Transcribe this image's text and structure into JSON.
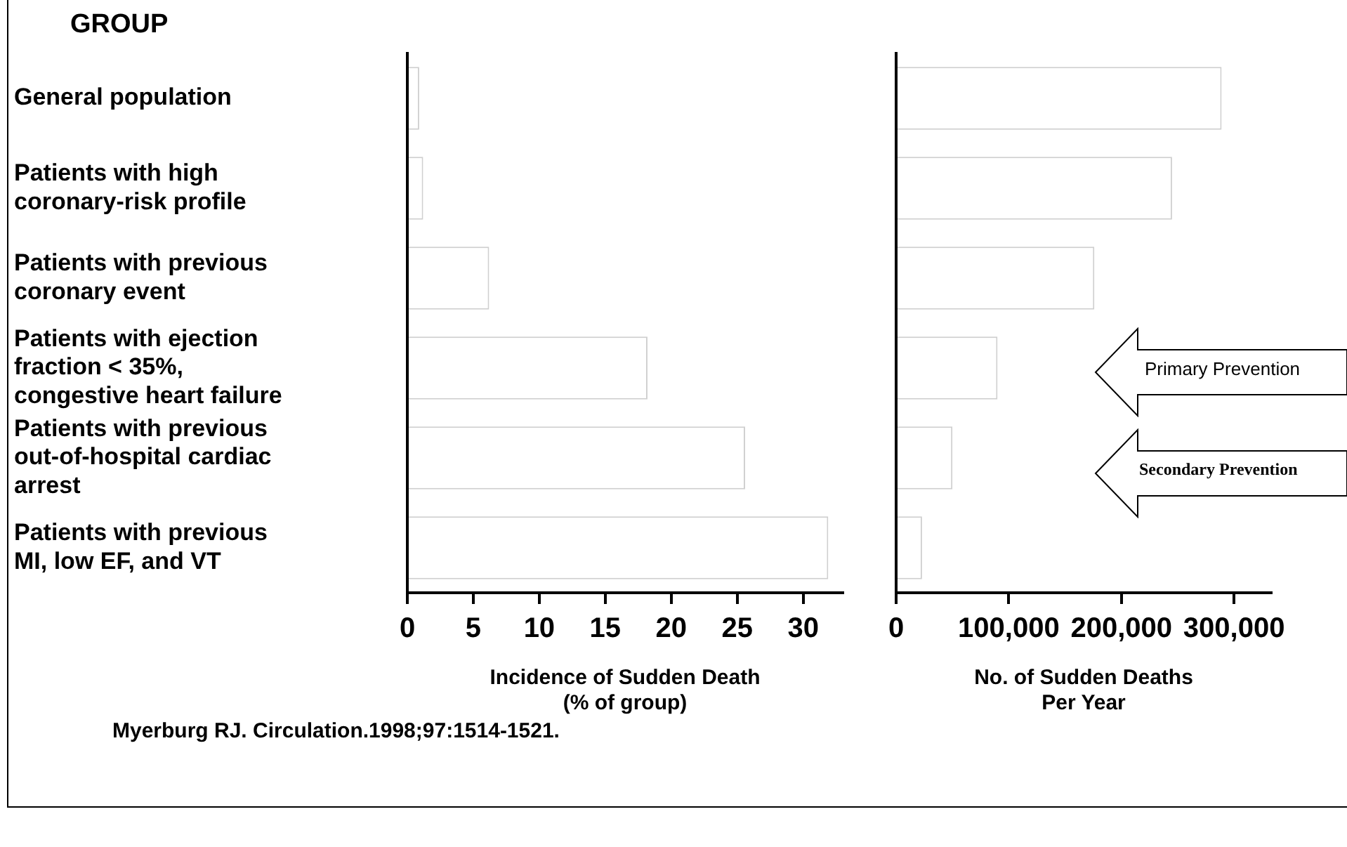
{
  "chart_data": [
    {
      "type": "bar",
      "orientation": "horizontal",
      "ylabel": "GROUP",
      "xlabel": "Incidence of Sudden Death (% of group)",
      "categories": [
        "General population",
        "Patients with high coronary-risk profile",
        "Patients with previous coronary event",
        "Patients with ejection fraction < 35%, congestive heart failure",
        "Patients with previous out-of-hospital cardiac arrest",
        "Patients with previous MI, low EF, and VT"
      ],
      "values": [
        0.9,
        1.2,
        6.2,
        18.2,
        25.6,
        31.9
      ],
      "color": "#ffffff",
      "xlim": [
        0,
        33
      ],
      "xticks": [
        0,
        5,
        10,
        15,
        20,
        25,
        30
      ],
      "grid": false,
      "legend": false,
      "annotations": [
        "Myerburg RJ. Circulation.1998;97:1514-1521."
      ]
    },
    {
      "type": "bar",
      "orientation": "horizontal",
      "xlabel": "No. of Sudden Deaths Per Year",
      "categories": [
        null,
        null,
        null,
        null,
        null,
        null
      ],
      "values": [
        289000,
        245000,
        176000,
        90000,
        50000,
        23000
      ],
      "color": "#ffffff",
      "xlim": [
        0,
        333000
      ],
      "xticks": [
        0,
        {
          "value": 100000,
          "label": "100,000"
        },
        {
          "value": 200000,
          "label": "200,000"
        },
        {
          "value": 300000,
          "label": "300,000"
        }
      ],
      "tick_labels": "x",
      "grid": false,
      "legend": false,
      "annotations": [
        "Primary Prevention",
        "Secondary Prevention"
      ]
    }
  ]
}
